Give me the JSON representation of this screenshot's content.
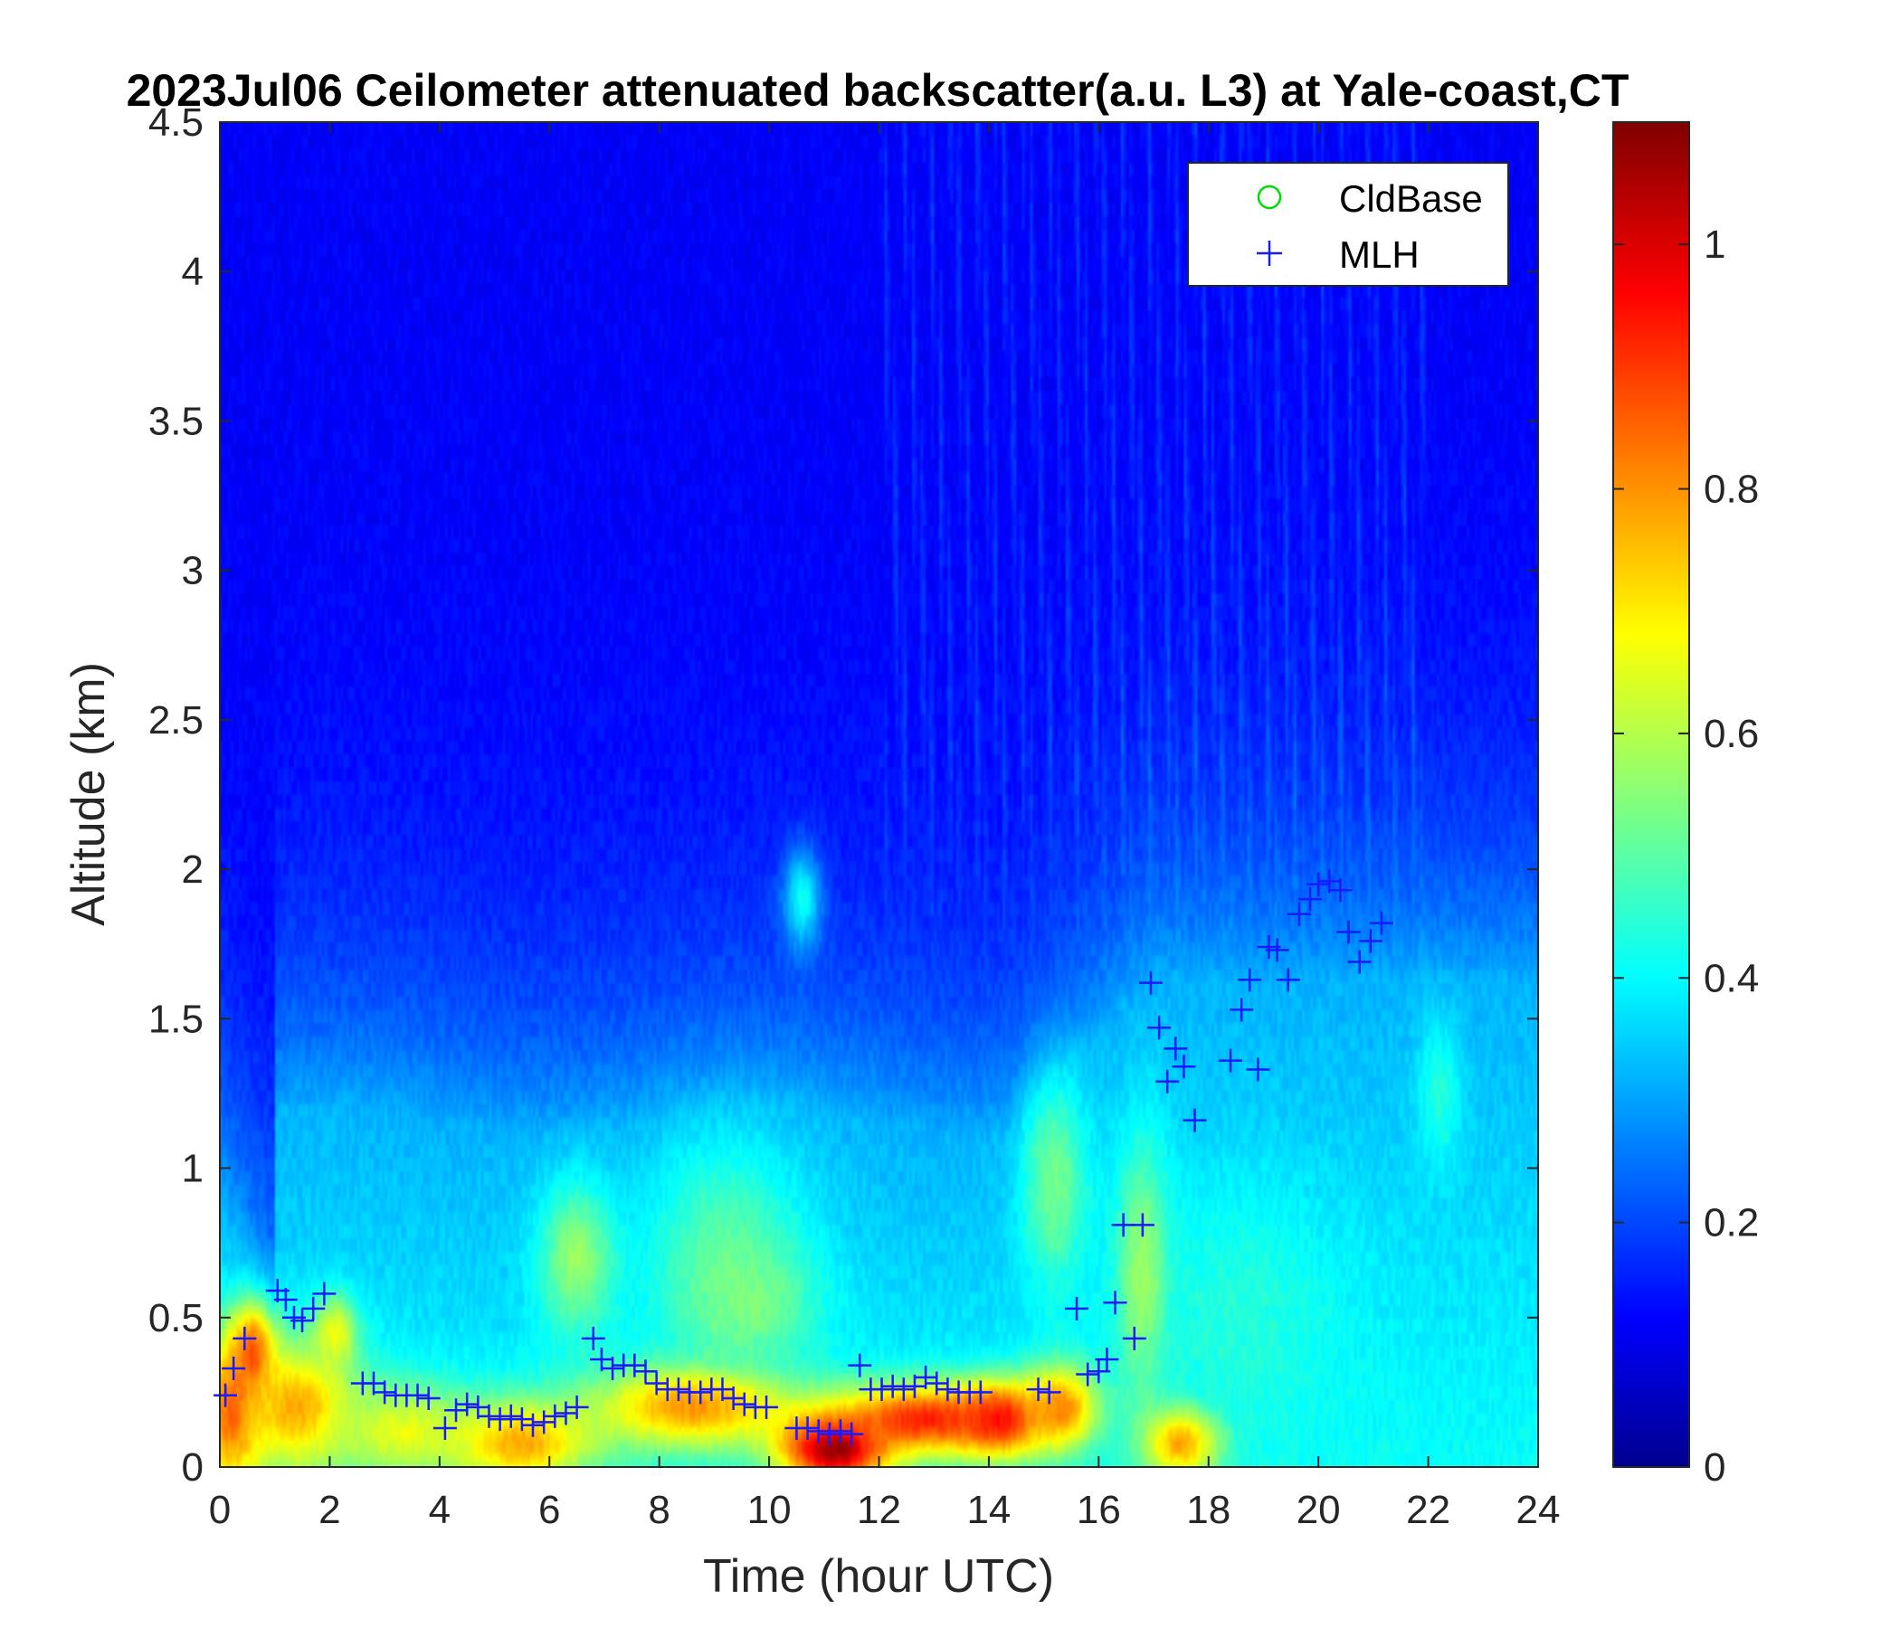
{
  "chart_data": {
    "type": "heatmap",
    "title": "2023Jul06 Ceilometer attenuated backscatter(a.u. L3) at Yale-coast,CT",
    "xlabel": "Time (hour UTC)",
    "ylabel": "Altitude (km)",
    "xlim": [
      0,
      24
    ],
    "ylim": [
      0,
      4.5
    ],
    "x_ticks": [
      "0",
      "2",
      "4",
      "6",
      "8",
      "10",
      "12",
      "14",
      "16",
      "18",
      "20",
      "22",
      "24"
    ],
    "y_ticks": [
      "0",
      "0.5",
      "1",
      "1.5",
      "2",
      "2.5",
      "3",
      "3.5",
      "4",
      "4.5"
    ],
    "colorbar": {
      "colormap": "jet",
      "range": [
        0,
        1.1
      ],
      "ticks": [
        "0",
        "0.2",
        "0.4",
        "0.6",
        "0.8",
        "1"
      ]
    },
    "legend": {
      "placement": "top-right",
      "entries": [
        {
          "label": "CldBase",
          "marker": "circle",
          "color": "#00dd00"
        },
        {
          "label": "MLH",
          "marker": "plus",
          "color": "#1a1aff"
        }
      ]
    },
    "series": [
      {
        "name": "MLH",
        "points": [
          [
            0.1,
            0.24
          ],
          [
            0.25,
            0.33
          ],
          [
            0.45,
            0.43
          ],
          [
            1.05,
            0.59
          ],
          [
            1.2,
            0.56
          ],
          [
            1.35,
            0.5
          ],
          [
            1.5,
            0.49
          ],
          [
            1.7,
            0.53
          ],
          [
            1.9,
            0.58
          ],
          [
            2.6,
            0.28
          ],
          [
            2.8,
            0.28
          ],
          [
            3.0,
            0.25
          ],
          [
            3.2,
            0.24
          ],
          [
            3.4,
            0.24
          ],
          [
            3.6,
            0.24
          ],
          [
            3.8,
            0.23
          ],
          [
            4.1,
            0.13
          ],
          [
            4.3,
            0.19
          ],
          [
            4.5,
            0.21
          ],
          [
            4.7,
            0.2
          ],
          [
            4.9,
            0.17
          ],
          [
            5.1,
            0.16
          ],
          [
            5.3,
            0.17
          ],
          [
            5.5,
            0.16
          ],
          [
            5.7,
            0.14
          ],
          [
            5.9,
            0.15
          ],
          [
            6.1,
            0.17
          ],
          [
            6.3,
            0.18
          ],
          [
            6.5,
            0.2
          ],
          [
            6.8,
            0.43
          ],
          [
            6.95,
            0.36
          ],
          [
            7.15,
            0.33
          ],
          [
            7.35,
            0.34
          ],
          [
            7.55,
            0.34
          ],
          [
            7.75,
            0.32
          ],
          [
            7.95,
            0.28
          ],
          [
            8.15,
            0.26
          ],
          [
            8.35,
            0.26
          ],
          [
            8.55,
            0.25
          ],
          [
            8.75,
            0.25
          ],
          [
            8.95,
            0.26
          ],
          [
            9.15,
            0.26
          ],
          [
            9.35,
            0.23
          ],
          [
            9.55,
            0.21
          ],
          [
            9.75,
            0.2
          ],
          [
            9.95,
            0.2
          ],
          [
            10.5,
            0.13
          ],
          [
            10.7,
            0.13
          ],
          [
            10.9,
            0.12
          ],
          [
            11.1,
            0.11
          ],
          [
            11.3,
            0.12
          ],
          [
            11.5,
            0.11
          ],
          [
            11.65,
            0.34
          ],
          [
            11.85,
            0.26
          ],
          [
            12.05,
            0.26
          ],
          [
            12.25,
            0.27
          ],
          [
            12.45,
            0.26
          ],
          [
            12.65,
            0.27
          ],
          [
            12.85,
            0.3
          ],
          [
            13.05,
            0.28
          ],
          [
            13.25,
            0.26
          ],
          [
            13.45,
            0.25
          ],
          [
            13.65,
            0.25
          ],
          [
            13.85,
            0.25
          ],
          [
            14.9,
            0.26
          ],
          [
            15.1,
            0.25
          ],
          [
            15.6,
            0.53
          ],
          [
            15.8,
            0.31
          ],
          [
            16.0,
            0.32
          ],
          [
            16.15,
            0.36
          ],
          [
            16.3,
            0.55
          ],
          [
            16.45,
            0.81
          ],
          [
            16.65,
            0.43
          ],
          [
            16.8,
            0.81
          ],
          [
            16.95,
            1.62
          ],
          [
            17.1,
            1.47
          ],
          [
            17.25,
            1.29
          ],
          [
            17.4,
            1.4
          ],
          [
            17.55,
            1.34
          ],
          [
            17.75,
            1.16
          ],
          [
            18.4,
            1.36
          ],
          [
            18.6,
            1.53
          ],
          [
            18.75,
            1.63
          ],
          [
            18.9,
            1.33
          ],
          [
            19.1,
            1.74
          ],
          [
            19.25,
            1.73
          ],
          [
            19.45,
            1.63
          ],
          [
            19.65,
            1.85
          ],
          [
            19.85,
            1.9
          ],
          [
            20.0,
            1.95
          ],
          [
            20.2,
            1.96
          ],
          [
            20.4,
            1.93
          ],
          [
            20.55,
            1.79
          ],
          [
            20.75,
            1.69
          ],
          [
            20.95,
            1.76
          ],
          [
            21.15,
            1.82
          ]
        ]
      },
      {
        "name": "CldBase",
        "points": []
      }
    ],
    "backscatter_features": [
      {
        "t": 0.2,
        "z": 0.18,
        "rx": 0.6,
        "rz": 0.28,
        "v": 0.85
      },
      {
        "t": 0.6,
        "z": 0.38,
        "rx": 0.4,
        "rz": 0.16,
        "v": 0.88
      },
      {
        "t": 1.4,
        "z": 0.2,
        "rx": 1.1,
        "rz": 0.22,
        "v": 0.78
      },
      {
        "t": 2.1,
        "z": 0.45,
        "rx": 0.4,
        "rz": 0.12,
        "v": 0.68
      },
      {
        "t": 3.3,
        "z": 0.12,
        "rx": 1.3,
        "rz": 0.16,
        "v": 0.66
      },
      {
        "t": 4.7,
        "z": 0.3,
        "rx": 1.1,
        "rz": 0.1,
        "v": 0.4
      },
      {
        "t": 5.5,
        "z": 0.08,
        "rx": 1.3,
        "rz": 0.14,
        "v": 0.78
      },
      {
        "t": 6.5,
        "z": 0.7,
        "rx": 0.7,
        "rz": 0.25,
        "v": 0.58
      },
      {
        "t": 8.6,
        "z": 0.2,
        "rx": 1.9,
        "rz": 0.14,
        "v": 0.8
      },
      {
        "t": 9.2,
        "z": 0.75,
        "rx": 1.4,
        "rz": 0.35,
        "v": 0.5
      },
      {
        "t": 9.6,
        "z": 0.55,
        "rx": 1.2,
        "rz": 0.2,
        "v": 0.55
      },
      {
        "t": 10.6,
        "z": 1.9,
        "rx": 0.35,
        "rz": 0.17,
        "v": 0.42
      },
      {
        "t": 11.2,
        "z": 0.06,
        "rx": 1.0,
        "rz": 0.12,
        "v": 1.08
      },
      {
        "t": 12.8,
        "z": 0.16,
        "rx": 1.6,
        "rz": 0.12,
        "v": 0.93
      },
      {
        "t": 14.2,
        "z": 0.16,
        "rx": 0.8,
        "rz": 0.12,
        "v": 0.95
      },
      {
        "t": 15.3,
        "z": 0.2,
        "rx": 0.7,
        "rz": 0.14,
        "v": 0.82
      },
      {
        "t": 15.2,
        "z": 0.95,
        "rx": 0.6,
        "rz": 0.35,
        "v": 0.54
      },
      {
        "t": 16.8,
        "z": 0.65,
        "rx": 0.5,
        "rz": 0.45,
        "v": 0.58
      },
      {
        "t": 17.5,
        "z": 0.08,
        "rx": 0.7,
        "rz": 0.12,
        "v": 0.78
      },
      {
        "t": 18.5,
        "z": 0.5,
        "rx": 2.0,
        "rz": 0.45,
        "v": 0.45
      },
      {
        "t": 22.2,
        "z": 1.25,
        "rx": 0.4,
        "rz": 0.25,
        "v": 0.45
      }
    ]
  }
}
